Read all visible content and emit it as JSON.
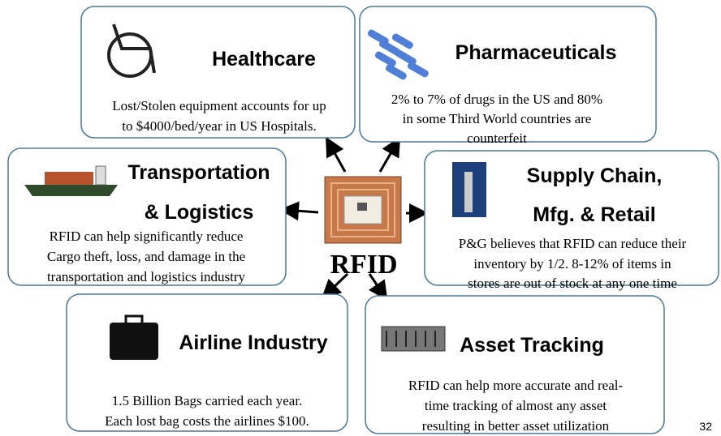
{
  "center_label": "RFID",
  "page_number": "32",
  "nodes": [
    {
      "title_lines": [
        "Healthcare"
      ],
      "text_lines": [
        "Lost/Stolen equipment accounts for up",
        "to $4000/bed/year in US Hospitals."
      ]
    },
    {
      "title_lines": [
        "Pharmaceuticals"
      ],
      "text_lines": [
        "2% to 7% of drugs in the US and 80%",
        "in some Third World countries are",
        "counterfeit"
      ]
    },
    {
      "title_lines": [
        "Transportation",
        "& Logistics"
      ],
      "text_lines": [
        "RFID can help significantly reduce",
        "Cargo theft, loss, and damage in the",
        "transportation and logistics industry"
      ]
    },
    {
      "title_lines": [
        "Supply Chain,",
        "Mfg. & Retail"
      ],
      "text_lines": [
        "P&G believes that RFID can reduce their",
        "inventory by 1/2. 8-12% of items in",
        "stores are out of stock at any one time"
      ]
    },
    {
      "title_lines": [
        "Airline Industry"
      ],
      "text_lines": [
        "1.5 Billion Bags carried each year.",
        "Each lost bag costs the airlines $100."
      ]
    },
    {
      "title_lines": [
        "Asset Tracking"
      ],
      "text_lines": [
        "RFID can help more accurate and real-",
        "time tracking of almost any asset",
        "resulting in better asset utilization"
      ]
    }
  ]
}
